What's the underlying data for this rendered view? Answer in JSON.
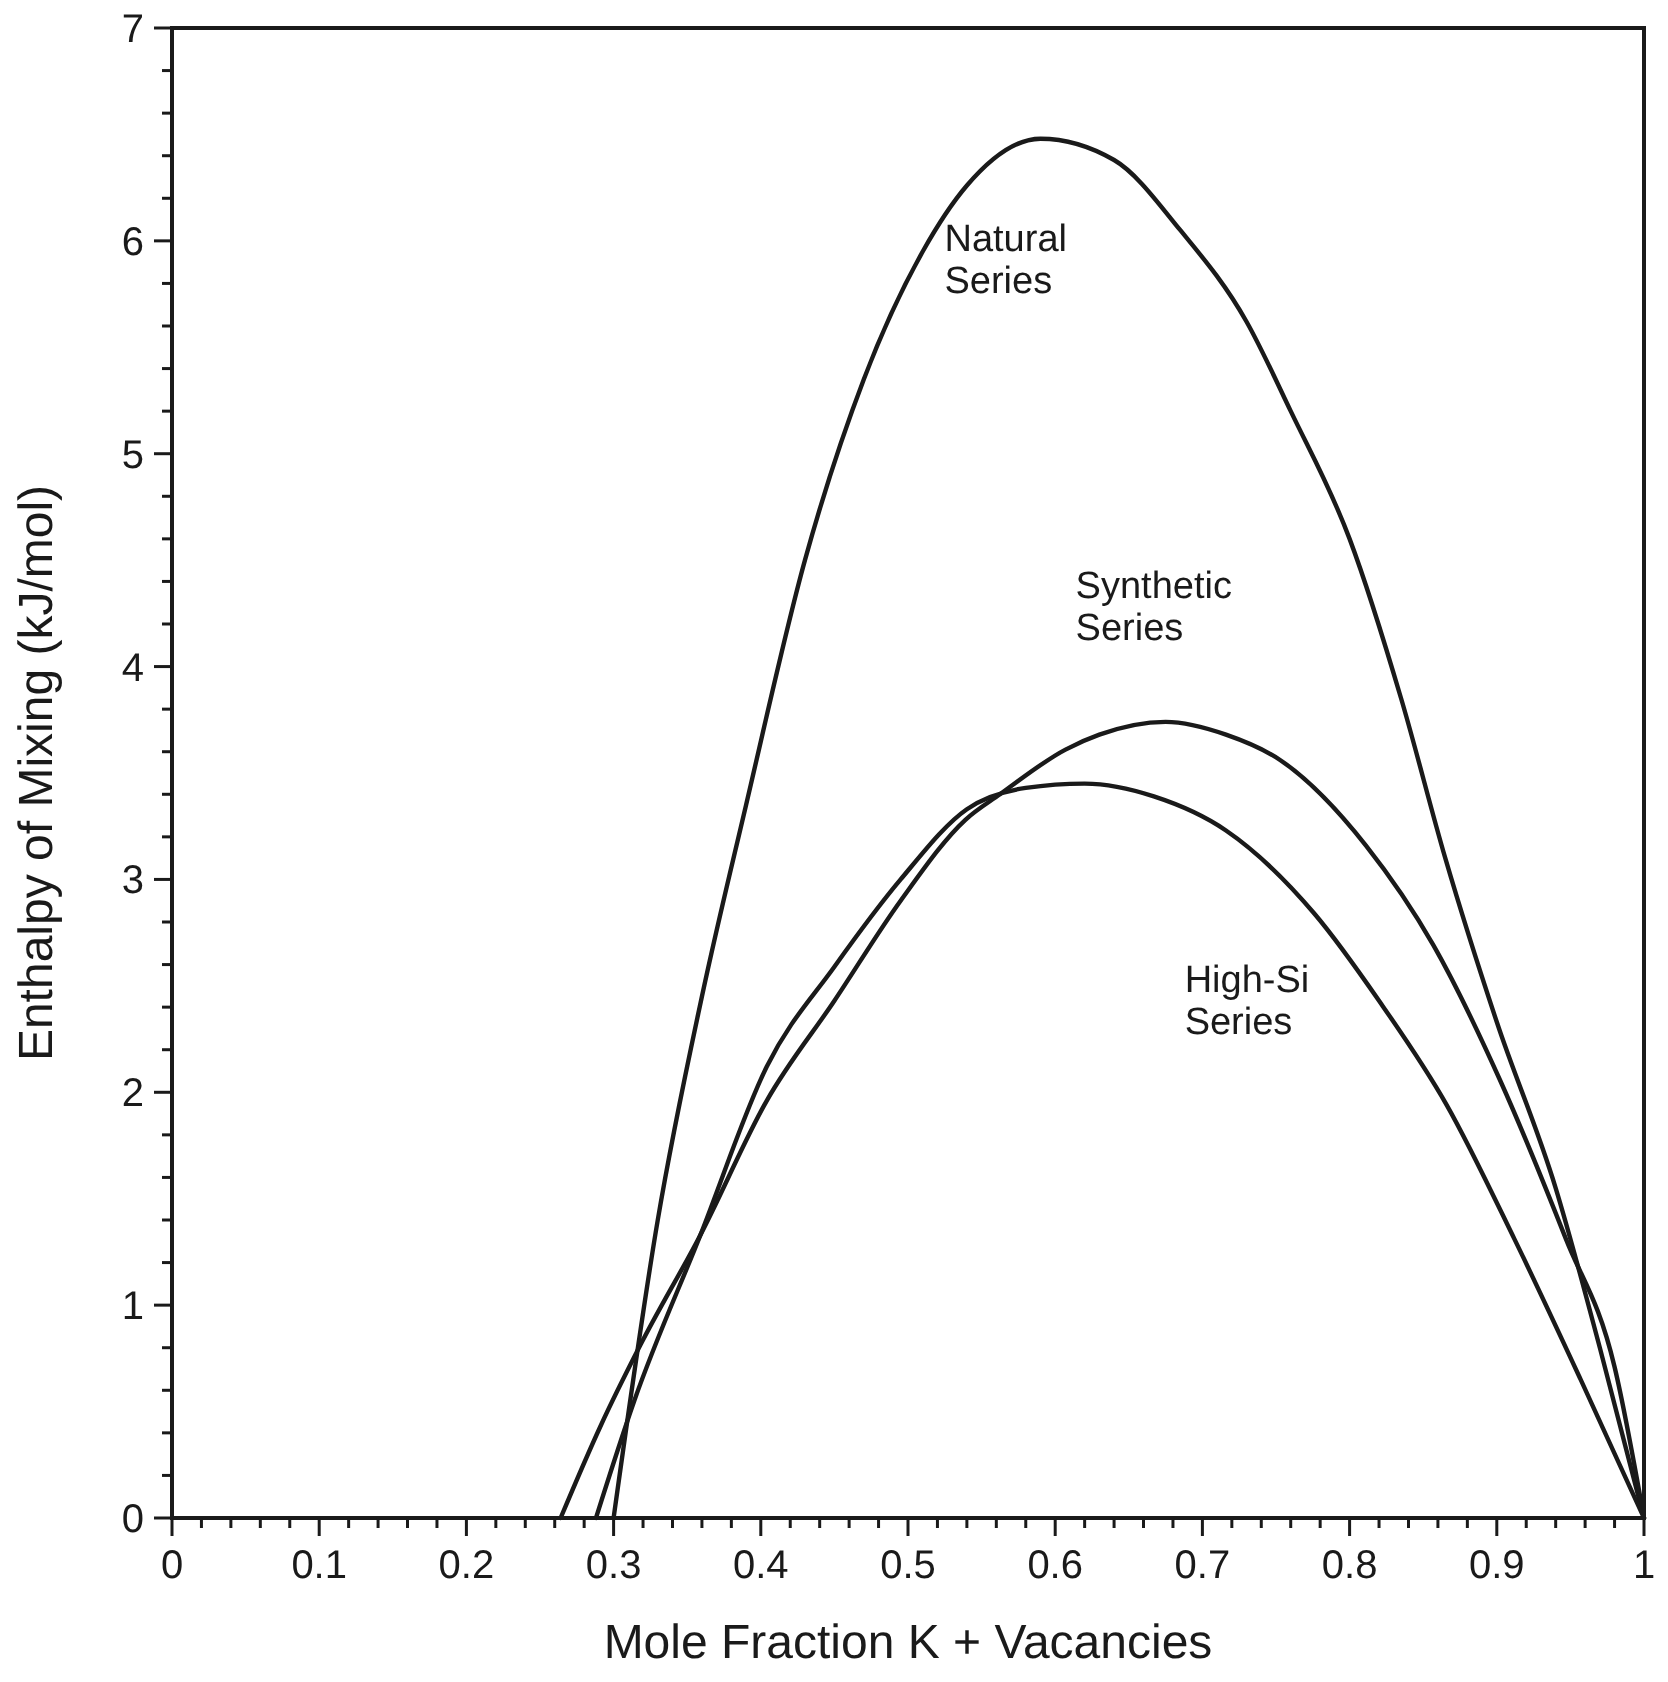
{
  "chart_data": {
    "type": "line",
    "xlabel": "Mole Fraction  K + Vacancies",
    "ylabel": "Enthalpy of Mixing (kJ/mol)",
    "xlim": [
      0,
      1
    ],
    "ylim": [
      0,
      7
    ],
    "xticks": [
      0,
      {
        "value": 0.02,
        "label": null
      },
      {
        "value": 0.04,
        "label": null
      },
      {
        "value": 0.06,
        "label": null
      },
      {
        "value": 0.08,
        "label": null
      },
      0.1,
      {
        "value": 0.12,
        "label": null
      },
      {
        "value": 0.14,
        "label": null
      },
      {
        "value": 0.16,
        "label": null
      },
      {
        "value": 0.18,
        "label": null
      },
      0.2,
      {
        "value": 0.22,
        "label": null
      },
      {
        "value": 0.24,
        "label": null
      },
      {
        "value": 0.26,
        "label": null
      },
      {
        "value": 0.28,
        "label": null
      },
      0.3,
      {
        "value": 0.32,
        "label": null
      },
      {
        "value": 0.34,
        "label": null
      },
      {
        "value": 0.36,
        "label": null
      },
      {
        "value": 0.38,
        "label": null
      },
      0.4,
      {
        "value": 0.42,
        "label": null
      },
      {
        "value": 0.44,
        "label": null
      },
      {
        "value": 0.46,
        "label": null
      },
      {
        "value": 0.48,
        "label": null
      },
      0.5,
      {
        "value": 0.52,
        "label": null
      },
      {
        "value": 0.54,
        "label": null
      },
      {
        "value": 0.56,
        "label": null
      },
      {
        "value": 0.58,
        "label": null
      },
      0.6,
      {
        "value": 0.62,
        "label": null
      },
      {
        "value": 0.64,
        "label": null
      },
      {
        "value": 0.66,
        "label": null
      },
      {
        "value": 0.68,
        "label": null
      },
      0.7,
      {
        "value": 0.72,
        "label": null
      },
      {
        "value": 0.74,
        "label": null
      },
      {
        "value": 0.76,
        "label": null
      },
      {
        "value": 0.78,
        "label": null
      },
      0.8,
      {
        "value": 0.82,
        "label": null
      },
      {
        "value": 0.84,
        "label": null
      },
      {
        "value": 0.86,
        "label": null
      },
      {
        "value": 0.88,
        "label": null
      },
      0.9,
      {
        "value": 0.92,
        "label": null
      },
      {
        "value": 0.94,
        "label": null
      },
      {
        "value": 0.96,
        "label": null
      },
      {
        "value": 0.98,
        "label": null
      },
      1
    ],
    "yticks": [
      0,
      {
        "value": 0.2,
        "label": null
      },
      {
        "value": 0.4,
        "label": null
      },
      {
        "value": 0.6,
        "label": null
      },
      {
        "value": 0.8,
        "label": null
      },
      1,
      {
        "value": 1.2,
        "label": null
      },
      {
        "value": 1.4,
        "label": null
      },
      {
        "value": 1.6,
        "label": null
      },
      {
        "value": 1.8,
        "label": null
      },
      2,
      {
        "value": 2.2,
        "label": null
      },
      {
        "value": 2.4,
        "label": null
      },
      {
        "value": 2.6,
        "label": null
      },
      {
        "value": 2.8,
        "label": null
      },
      3,
      {
        "value": 3.2,
        "label": null
      },
      {
        "value": 3.4,
        "label": null
      },
      {
        "value": 3.6,
        "label": null
      },
      {
        "value": 3.8,
        "label": null
      },
      4,
      {
        "value": 4.2,
        "label": null
      },
      {
        "value": 4.4,
        "label": null
      },
      {
        "value": 4.6,
        "label": null
      },
      {
        "value": 4.8,
        "label": null
      },
      5,
      {
        "value": 5.2,
        "label": null
      },
      {
        "value": 5.4,
        "label": null
      },
      {
        "value": 5.6,
        "label": null
      },
      {
        "value": 5.8,
        "label": null
      },
      6,
      {
        "value": 6.2,
        "label": null
      },
      {
        "value": 6.4,
        "label": null
      },
      {
        "value": 6.6,
        "label": null
      },
      {
        "value": 6.8,
        "label": null
      },
      7
    ],
    "grid": false,
    "marker": "none",
    "line_style": "solid",
    "series": [
      {
        "name": "Natural Series",
        "color": "#1a1a1a",
        "x": [
          0.3,
          0.33,
          0.36,
          0.39,
          0.43,
          0.47,
          0.51,
          0.54,
          0.59,
          0.64,
          0.685,
          0.73,
          0.76,
          0.8,
          0.835,
          0.865,
          0.9,
          0.94,
          0.97,
          1
        ],
        "values": [
          0,
          1.4,
          2.45,
          3.35,
          4.5,
          5.35,
          5.95,
          6.26,
          6.48,
          6.38,
          6.05,
          5.62,
          5.2,
          4.6,
          3.85,
          3.1,
          2.33,
          1.55,
          0.8,
          0
        ]
      },
      {
        "name": "Synthetic Series",
        "color": "#1a1a1a",
        "x": [
          0.264,
          0.291,
          0.318,
          0.359,
          0.404,
          0.45,
          0.495,
          0.539,
          0.5625,
          0.607,
          0.63,
          0.675,
          0.716,
          0.753,
          0.811,
          0.857,
          0.902,
          0.947,
          0.98,
          1
        ],
        "values": [
          0,
          0.43,
          0.81,
          1.33,
          1.96,
          2.43,
          2.9,
          3.28,
          3.4,
          3.61,
          3.68,
          3.74,
          3.68,
          3.56,
          3.16,
          2.69,
          2.06,
          1.31,
          0.71,
          0
        ]
      },
      {
        "name": "High-Si Series",
        "color": "#1a1a1a",
        "x": [
          0.288,
          0.314,
          0.359,
          0.404,
          0.45,
          0.495,
          0.54,
          0.58,
          0.62,
          0.667,
          0.716,
          0.776,
          0.82,
          0.866,
          0.912,
          0.957,
          1
        ],
        "values": [
          0,
          0.55,
          1.33,
          2.12,
          2.59,
          3.0,
          3.33,
          3.43,
          3.45,
          3.39,
          3.23,
          2.84,
          2.43,
          1.94,
          1.31,
          0.65,
          0
        ]
      }
    ]
  }
}
